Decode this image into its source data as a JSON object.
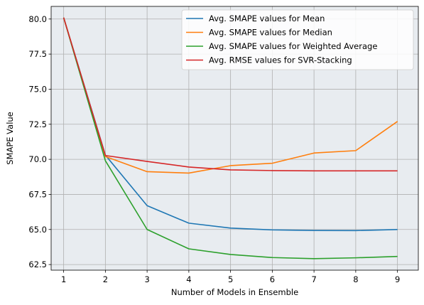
{
  "chart_data": {
    "type": "line",
    "title": "",
    "xlabel": "Number of Models in Ensemble",
    "ylabel": "SMAPE Value",
    "x": [
      1,
      2,
      3,
      4,
      5,
      6,
      7,
      8,
      9
    ],
    "xlim": [
      0.7,
      9.5
    ],
    "ylim": [
      62.1,
      80.9
    ],
    "xticks": [
      1,
      2,
      3,
      4,
      5,
      6,
      7,
      8,
      9
    ],
    "yticks": [
      62.5,
      65.0,
      67.5,
      70.0,
      72.5,
      75.0,
      77.5,
      80.0
    ],
    "ytick_labels": [
      "62.5",
      "65.0",
      "67.5",
      "70.0",
      "72.5",
      "75.0",
      "77.5",
      "80.0"
    ],
    "grid": true,
    "legend_position": "top-right",
    "background_color": "#e8ecf0",
    "series": [
      {
        "name": "Avg. SMAPE values for Mean",
        "color": "#1f77b4",
        "values": [
          80.1,
          70.3,
          66.7,
          65.45,
          65.1,
          64.97,
          64.93,
          64.92,
          65.0
        ]
      },
      {
        "name": "Avg. SMAPE values for Median",
        "color": "#ff7f0e",
        "values": [
          80.1,
          70.2,
          69.12,
          69.02,
          69.55,
          69.72,
          70.45,
          70.62,
          72.7
        ]
      },
      {
        "name": "Avg. SMAPE values for Weighted Average",
        "color": "#2ca02c",
        "values": [
          80.1,
          69.9,
          65.0,
          63.62,
          63.22,
          63.0,
          62.92,
          62.98,
          63.08
        ]
      },
      {
        "name": "Avg. RMSE values for SVR-Stacking",
        "color": "#d62728",
        "values": [
          80.1,
          70.27,
          69.85,
          69.45,
          69.25,
          69.2,
          69.18,
          69.18,
          69.18
        ]
      }
    ]
  }
}
